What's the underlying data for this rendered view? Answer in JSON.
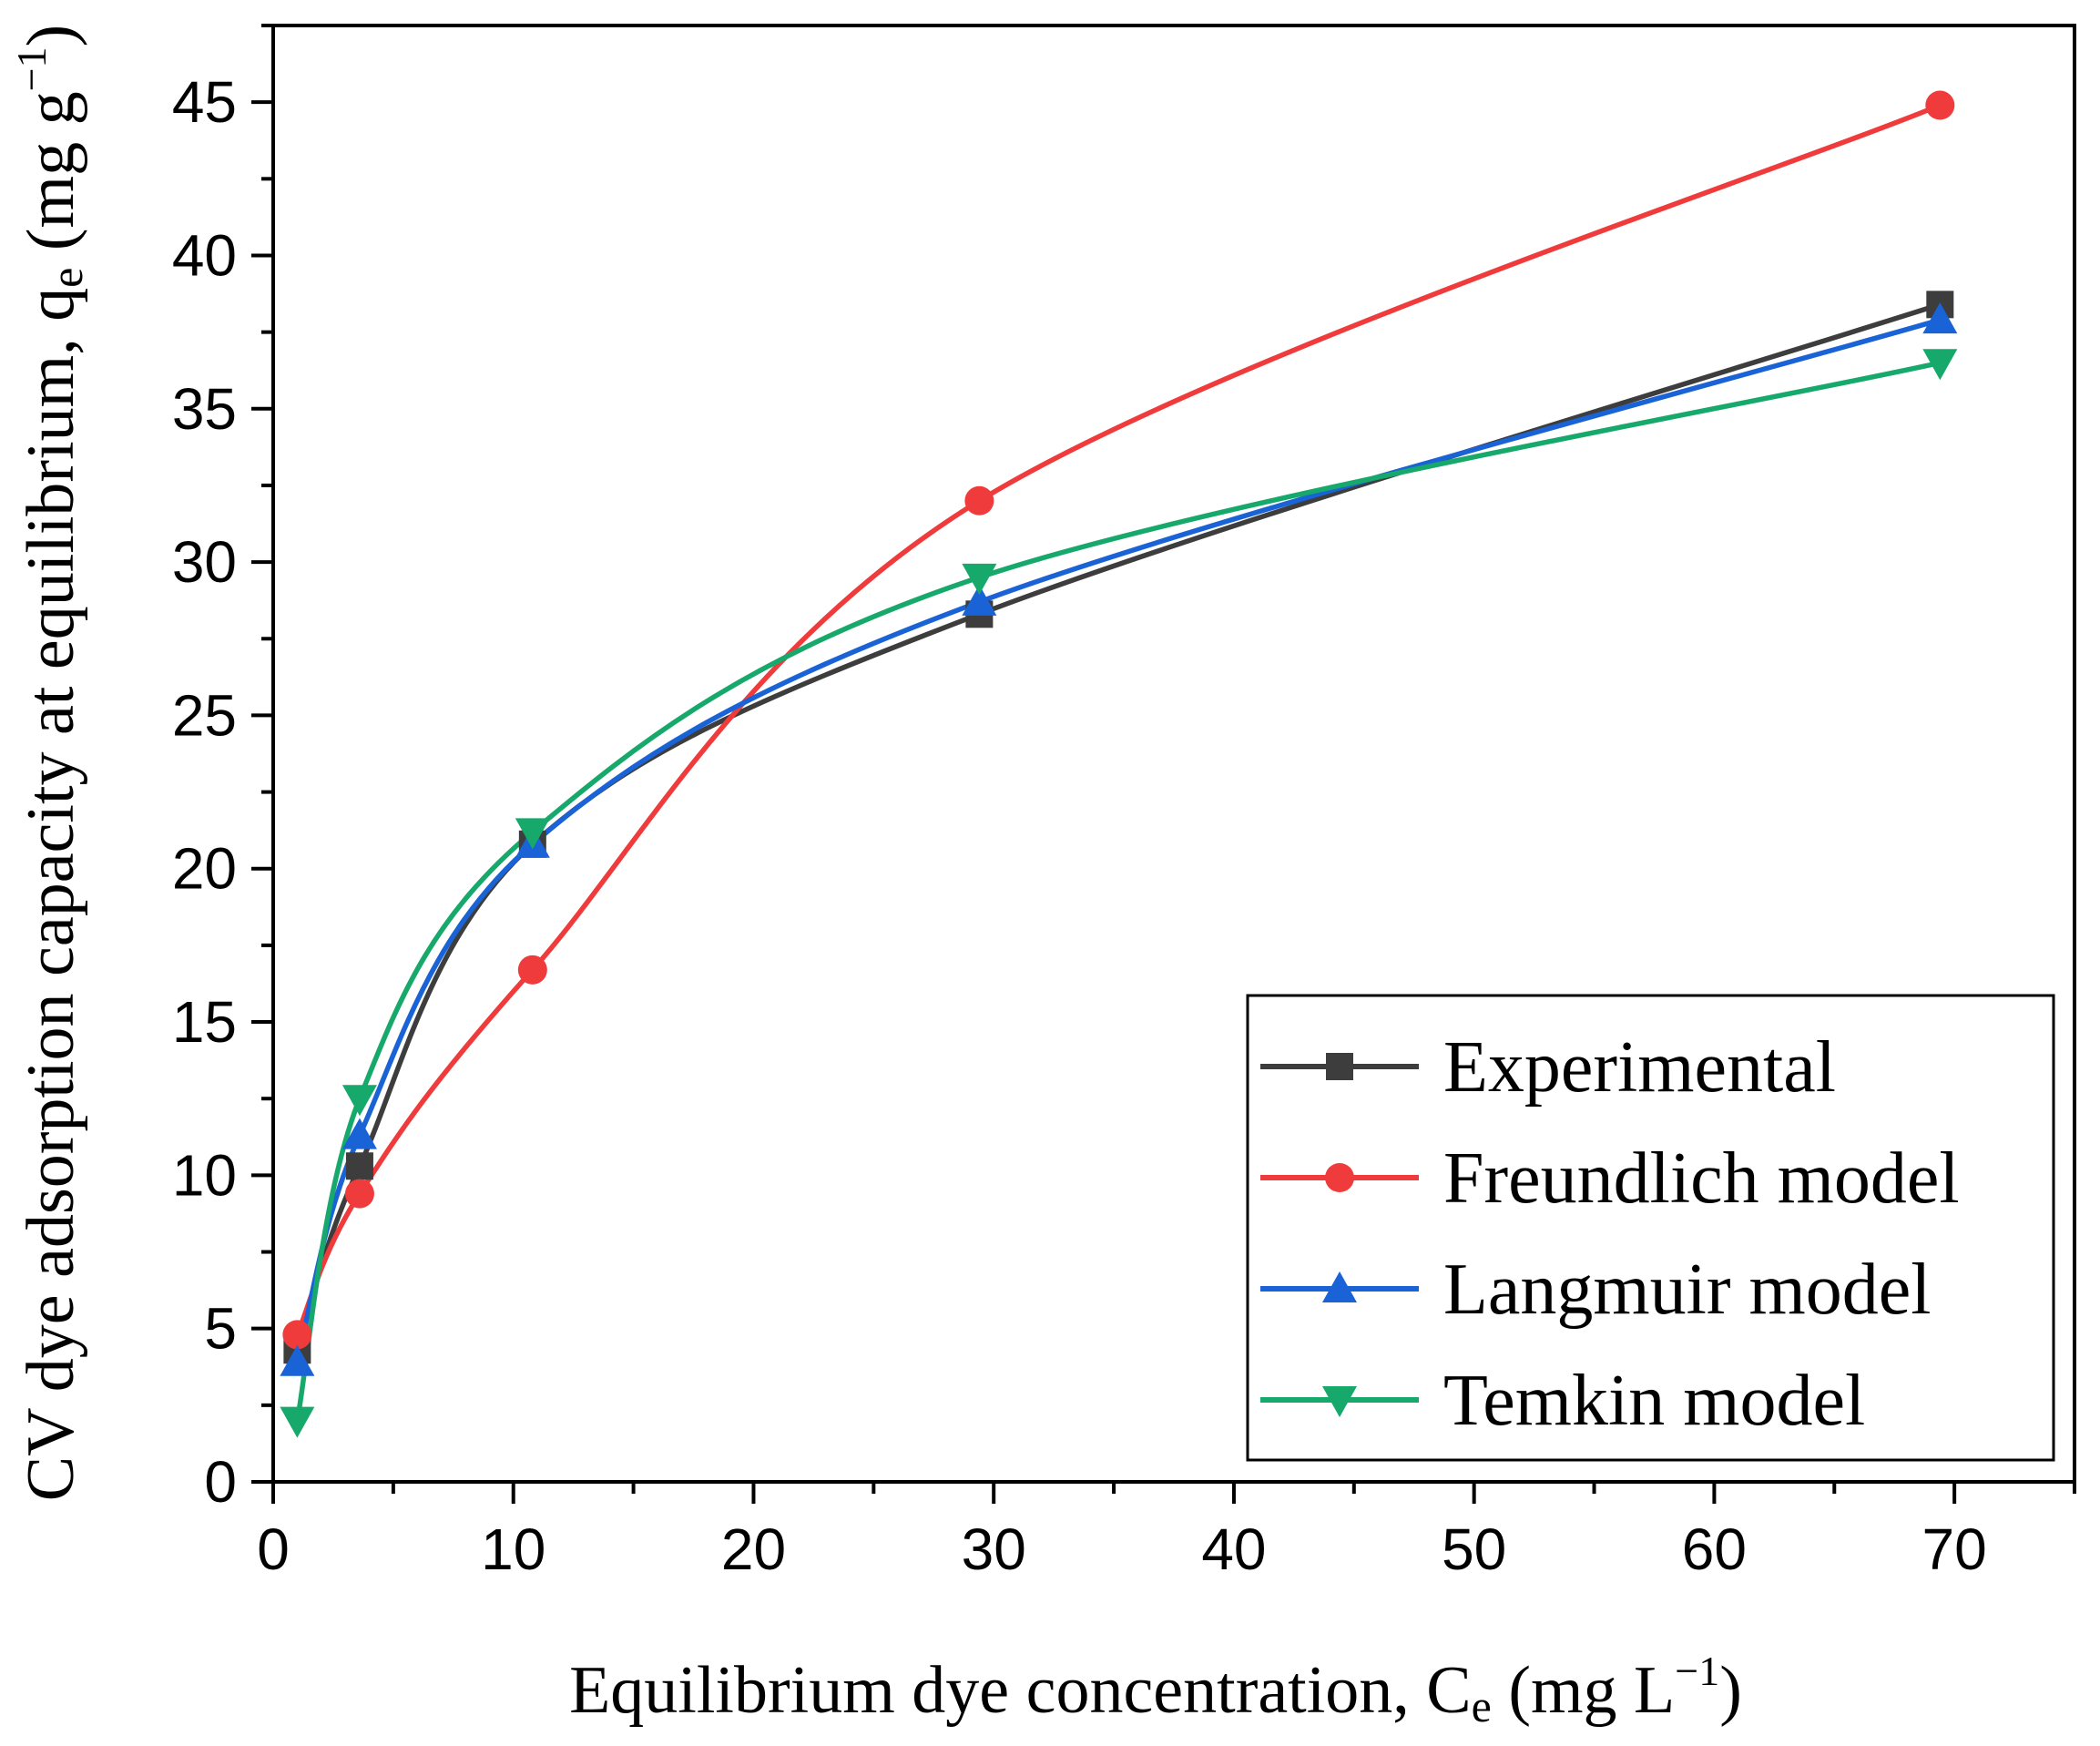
{
  "chart_data": {
    "type": "line",
    "title": "",
    "xlabel": "Equilibrium dye concentration, Ce (mg L−1)",
    "ylabel": "CV dye adsorption capacity at equilibrium, qe (mg g−1)",
    "xlabel_parts": {
      "main": "Equilibrium dye concentration, C",
      "sub": "e",
      "unit_pre": " (mg L",
      "sup": "−1",
      "unit_post": ")"
    },
    "ylabel_parts": {
      "main": "CV dye adsorption capacity at equilibrium, q",
      "sub": "e",
      "unit_pre": " (mg g",
      "sup": "−1",
      "unit_post": ")"
    },
    "xlim": [
      0,
      75
    ],
    "ylim": [
      0,
      47.5
    ],
    "xticks": [
      0,
      10,
      20,
      30,
      40,
      50,
      60,
      70
    ],
    "yticks": [
      0,
      5,
      10,
      15,
      20,
      25,
      30,
      35,
      40,
      45
    ],
    "x_minor_step": 5,
    "y_minor_step": 2.5,
    "grid": false,
    "legend_position": "bottom-right",
    "series": [
      {
        "name": "Experimental",
        "marker": "square",
        "color": "#3d3d3d",
        "x": [
          1.0,
          3.6,
          10.8,
          29.4,
          69.4
        ],
        "y": [
          4.3,
          10.3,
          20.8,
          28.3,
          38.4
        ]
      },
      {
        "name": "Freundlich model",
        "marker": "circle",
        "color": "#ef3b3b",
        "x": [
          1.0,
          3.6,
          10.8,
          29.4,
          69.4
        ],
        "y": [
          4.8,
          9.4,
          16.7,
          32.0,
          44.9
        ]
      },
      {
        "name": "Langmuir model",
        "marker": "triangle-up",
        "color": "#1a63d6",
        "x": [
          1.0,
          3.6,
          10.8,
          29.4,
          69.4
        ],
        "y": [
          3.9,
          11.3,
          20.8,
          28.7,
          37.9
        ]
      },
      {
        "name": "Temkin model",
        "marker": "triangle-down",
        "color": "#17a86b",
        "x": [
          1.0,
          3.6,
          10.8,
          29.4,
          69.4
        ],
        "y": [
          2.0,
          12.5,
          21.2,
          29.5,
          36.5
        ]
      }
    ]
  }
}
